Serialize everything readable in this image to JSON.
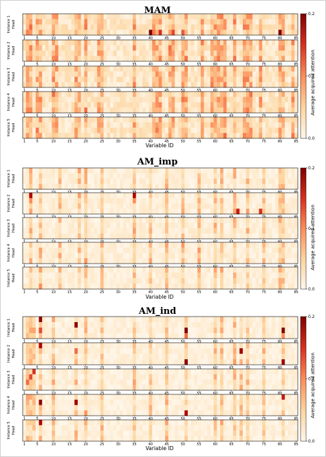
{
  "chart_data": [
    {
      "type": "heatmap",
      "title": "MAM",
      "xlabel": "Variable ID",
      "x_ticks": [
        "1",
        "5",
        "10",
        "15",
        "20",
        "25",
        "30",
        "35",
        "40",
        "45",
        "50",
        "55",
        "60",
        "65",
        "70",
        "75",
        "80",
        "85"
      ],
      "x_range": [
        1,
        85
      ],
      "rows": [
        {
          "label": "Instance 1",
          "sublabel": "Head"
        },
        {
          "label": "Instance 2",
          "sublabel": "Head"
        },
        {
          "label": "Instance 3",
          "sublabel": "Head"
        },
        {
          "label": "Instance 4",
          "sublabel": "Head"
        },
        {
          "label": "Instance 5",
          "sublabel": "Head"
        }
      ],
      "heads_per_instance": 4,
      "colorbar": {
        "label": "Average acquired attention",
        "ticks": [
          "0.0",
          "0.1",
          "0.2"
        ],
        "range": [
          0.0,
          0.2
        ],
        "colormap": "OrRd"
      },
      "hot_cells": [
        {
          "instance": 1,
          "head": 4,
          "variable": 40,
          "value": 0.2
        },
        {
          "instance": 1,
          "head": 4,
          "variable": 43,
          "value": 0.15
        },
        {
          "instance": 1,
          "head": 4,
          "variable": 47,
          "value": 0.14
        },
        {
          "instance": 1,
          "head": 4,
          "variable": 50,
          "value": 0.13
        },
        {
          "instance": 1,
          "head": 4,
          "variable": 80,
          "value": 0.2
        },
        {
          "instance": 1,
          "head": 1,
          "variable": 70,
          "value": 0.1
        },
        {
          "instance": 2,
          "head": 3,
          "variable": 41,
          "value": 0.08
        },
        {
          "instance": 3,
          "head": 2,
          "variable": 70,
          "value": 0.09
        },
        {
          "instance": 4,
          "head": 2,
          "variable": 70,
          "value": 0.09
        },
        {
          "instance": 5,
          "head": 3,
          "variable": 70,
          "value": 0.08
        }
      ]
    },
    {
      "type": "heatmap",
      "title": "AM_imp",
      "xlabel": "Variable ID",
      "x_ticks": [
        "1",
        "5",
        "10",
        "15",
        "20",
        "25",
        "30",
        "35",
        "40",
        "45",
        "50",
        "55",
        "60",
        "65",
        "70",
        "75",
        "80",
        "85"
      ],
      "x_range": [
        1,
        85
      ],
      "rows": [
        {
          "label": "Instance 1",
          "sublabel": "Head"
        },
        {
          "label": "Instance 2",
          "sublabel": "Head"
        },
        {
          "label": "Instance 3",
          "sublabel": "Head"
        },
        {
          "label": "Instance 4",
          "sublabel": "Head"
        },
        {
          "label": "Instance 5",
          "sublabel": "Head"
        }
      ],
      "heads_per_instance": 4,
      "colorbar": {
        "label": "Average acquired attention",
        "ticks": [
          "0.0",
          "0.1",
          "0.2"
        ],
        "range": [
          0.0,
          0.2
        ],
        "colormap": "OrRd"
      },
      "hot_cells": [
        {
          "instance": 2,
          "head": 1,
          "variable": 3,
          "value": 0.17
        },
        {
          "instance": 2,
          "head": 2,
          "variable": 3,
          "value": 0.1
        },
        {
          "instance": 2,
          "head": 1,
          "variable": 35,
          "value": 0.17
        },
        {
          "instance": 2,
          "head": 2,
          "variable": 35,
          "value": 0.1
        },
        {
          "instance": 2,
          "head": 4,
          "variable": 67,
          "value": 0.16
        },
        {
          "instance": 2,
          "head": 4,
          "variable": 74,
          "value": 0.15
        },
        {
          "instance": 2,
          "head": 2,
          "variable": 81,
          "value": 0.08
        }
      ]
    },
    {
      "type": "heatmap",
      "title": "AM_ind",
      "xlabel": "Variable ID",
      "x_ticks": [
        "1",
        "5",
        "10",
        "15",
        "20",
        "25",
        "30",
        "35",
        "40",
        "45",
        "50",
        "55",
        "60",
        "65",
        "70",
        "75",
        "80",
        "85"
      ],
      "x_range": [
        1,
        85
      ],
      "rows": [
        {
          "label": "Instance 1",
          "sublabel": "Head"
        },
        {
          "label": "Instance 2",
          "sublabel": "Head"
        },
        {
          "label": "Instance 3",
          "sublabel": "Head"
        },
        {
          "label": "Instance 4",
          "sublabel": "Head"
        },
        {
          "label": "Instance 5",
          "sublabel": "Head"
        }
      ],
      "heads_per_instance": 4,
      "colorbar": {
        "label": "Average acquired attention",
        "ticks": [
          "0.0",
          "0.1",
          "0.2"
        ],
        "range": [
          0.0,
          0.2
        ],
        "colormap": "OrRd"
      },
      "hot_cells": [
        {
          "instance": 1,
          "head": 1,
          "variable": 6,
          "value": 0.19
        },
        {
          "instance": 1,
          "head": 3,
          "variable": 6,
          "value": 0.14
        },
        {
          "instance": 1,
          "head": 2,
          "variable": 17,
          "value": 0.19
        },
        {
          "instance": 1,
          "head": 3,
          "variable": 51,
          "value": 0.2
        },
        {
          "instance": 1,
          "head": 4,
          "variable": 51,
          "value": 0.12
        },
        {
          "instance": 1,
          "head": 3,
          "variable": 81,
          "value": 0.2
        },
        {
          "instance": 1,
          "head": 4,
          "variable": 81,
          "value": 0.1
        },
        {
          "instance": 2,
          "head": 1,
          "variable": 6,
          "value": 0.17
        },
        {
          "instance": 2,
          "head": 2,
          "variable": 17,
          "value": 0.12
        },
        {
          "instance": 2,
          "head": 4,
          "variable": 51,
          "value": 0.19
        },
        {
          "instance": 2,
          "head": 2,
          "variable": 68,
          "value": 0.18
        },
        {
          "instance": 2,
          "head": 4,
          "variable": 81,
          "value": 0.18
        },
        {
          "instance": 3,
          "head": 1,
          "variable": 4,
          "value": 0.15
        },
        {
          "instance": 3,
          "head": 2,
          "variable": 3,
          "value": 0.14
        },
        {
          "instance": 3,
          "head": 3,
          "variable": 2,
          "value": 0.12
        },
        {
          "instance": 4,
          "head": 2,
          "variable": 6,
          "value": 0.19
        },
        {
          "instance": 4,
          "head": 2,
          "variable": 17,
          "value": 0.18
        },
        {
          "instance": 4,
          "head": 4,
          "variable": 51,
          "value": 0.17
        },
        {
          "instance": 4,
          "head": 1,
          "variable": 81,
          "value": 0.16
        },
        {
          "instance": 5,
          "head": 1,
          "variable": 6,
          "value": 0.17
        }
      ]
    }
  ]
}
